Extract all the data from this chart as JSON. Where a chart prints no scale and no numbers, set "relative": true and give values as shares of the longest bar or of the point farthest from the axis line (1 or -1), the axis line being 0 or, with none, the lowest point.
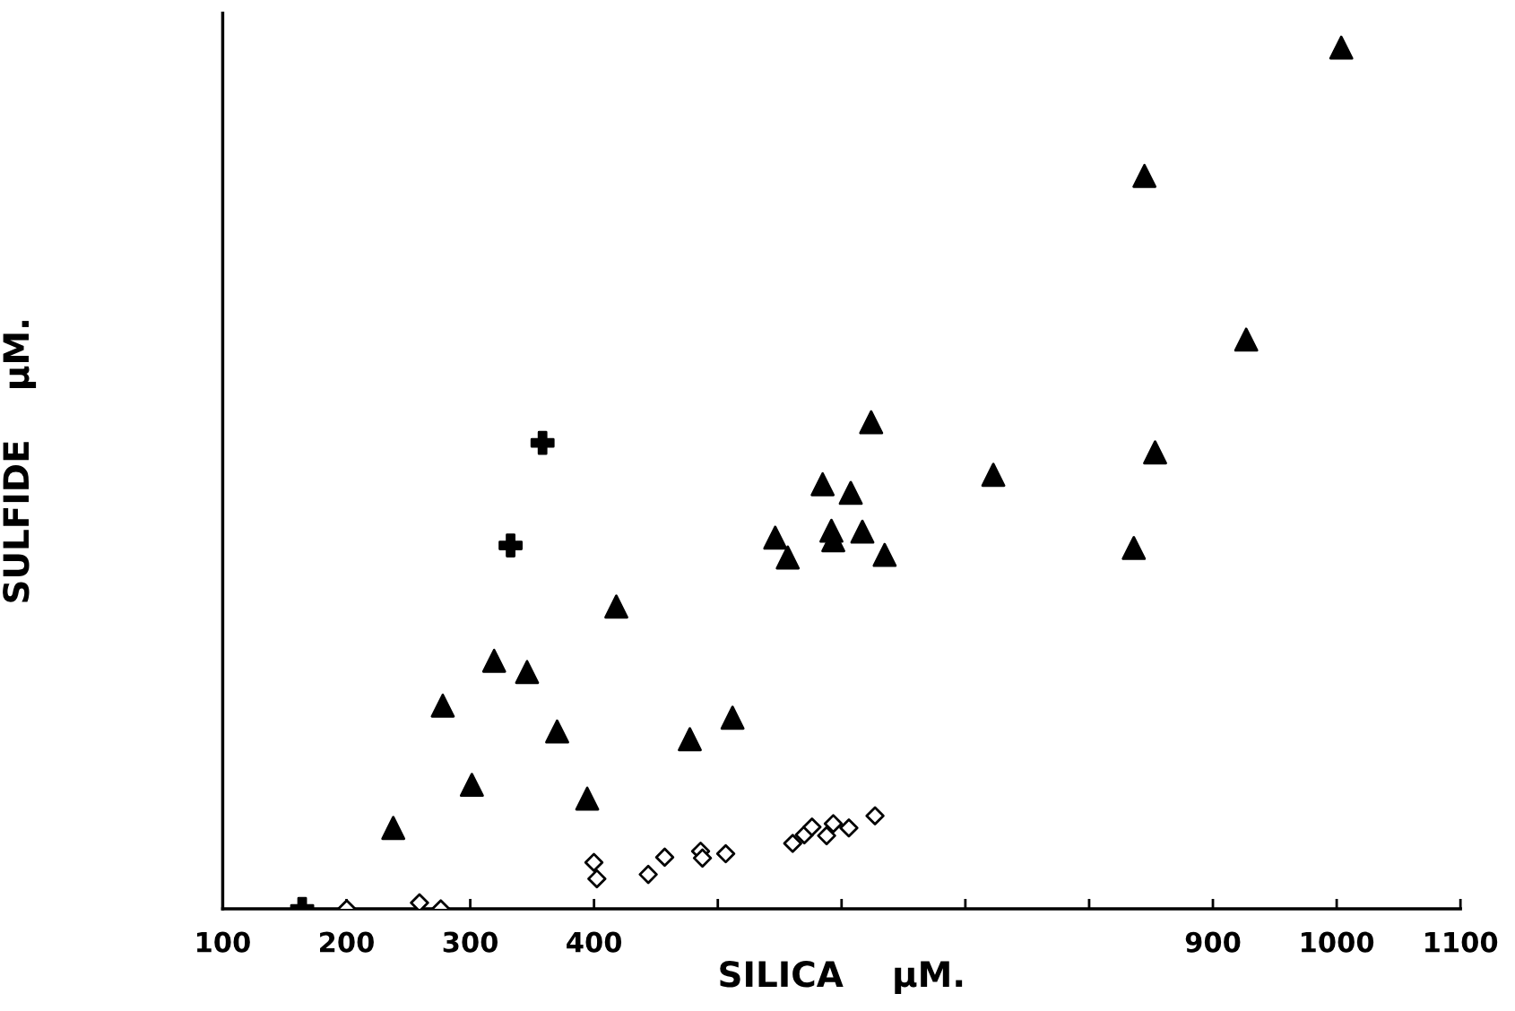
{
  "chart_data": {
    "type": "scatter",
    "relative": true,
    "xlabel": "SILICA    μM.",
    "ylabel": "SULFIDE    μM.",
    "xlim": [
      100,
      1100
    ],
    "xticks": [
      100,
      200,
      300,
      400,
      {
        "value": 500,
        "label": null
      },
      {
        "value": 600,
        "label": null
      },
      {
        "value": 700,
        "label": null
      },
      {
        "value": 800,
        "label": null
      },
      900,
      1000,
      1100
    ],
    "grid": false,
    "legend": false,
    "series": [
      {
        "color": "#000000",
        "marker": "triangle",
        "x": [
          237.8,
          277.8,
          301.3,
          319.3,
          345.9,
          370.2,
          394.5,
          418,
          477.4,
          511.9,
          546.4,
          556.5,
          584.7,
          591.8,
          593.3,
          607.4,
          616.8,
          623.9,
          634.8,
          722.6,
          836.1,
          844.7,
          853.3,
          926.9,
          1003.7
        ],
        "values": [
          0.094,
          0.236,
          0.144,
          0.288,
          0.275,
          0.206,
          0.128,
          0.351,
          0.197,
          0.222,
          0.431,
          0.408,
          0.493,
          0.439,
          0.428,
          0.483,
          0.438,
          0.565,
          0.411,
          0.504,
          0.419,
          0.851,
          0.53,
          0.661,
          1.0
        ]
      },
      {
        "color": "#000000",
        "marker": "cross",
        "x": [
          358.4,
          332.6,
          164.2
        ],
        "values": [
          0.541,
          0.422,
          0.0
        ]
      },
      {
        "color": "#000000",
        "marker": "diamond",
        "x": [
          200.2,
          259.0,
          276.2,
          399.9,
          402.3,
          443.8,
          457.1,
          486.1,
          487.6,
          506.4,
          560.5,
          569.9,
          576.1,
          587.9,
          593.3,
          605.9,
          627.0
        ],
        "values": [
          0.0,
          0.007,
          0.0,
          0.054,
          0.035,
          0.04,
          0.06,
          0.067,
          0.059,
          0.064,
          0.076,
          0.086,
          0.095,
          0.085,
          0.099,
          0.094,
          0.108
        ]
      }
    ]
  }
}
